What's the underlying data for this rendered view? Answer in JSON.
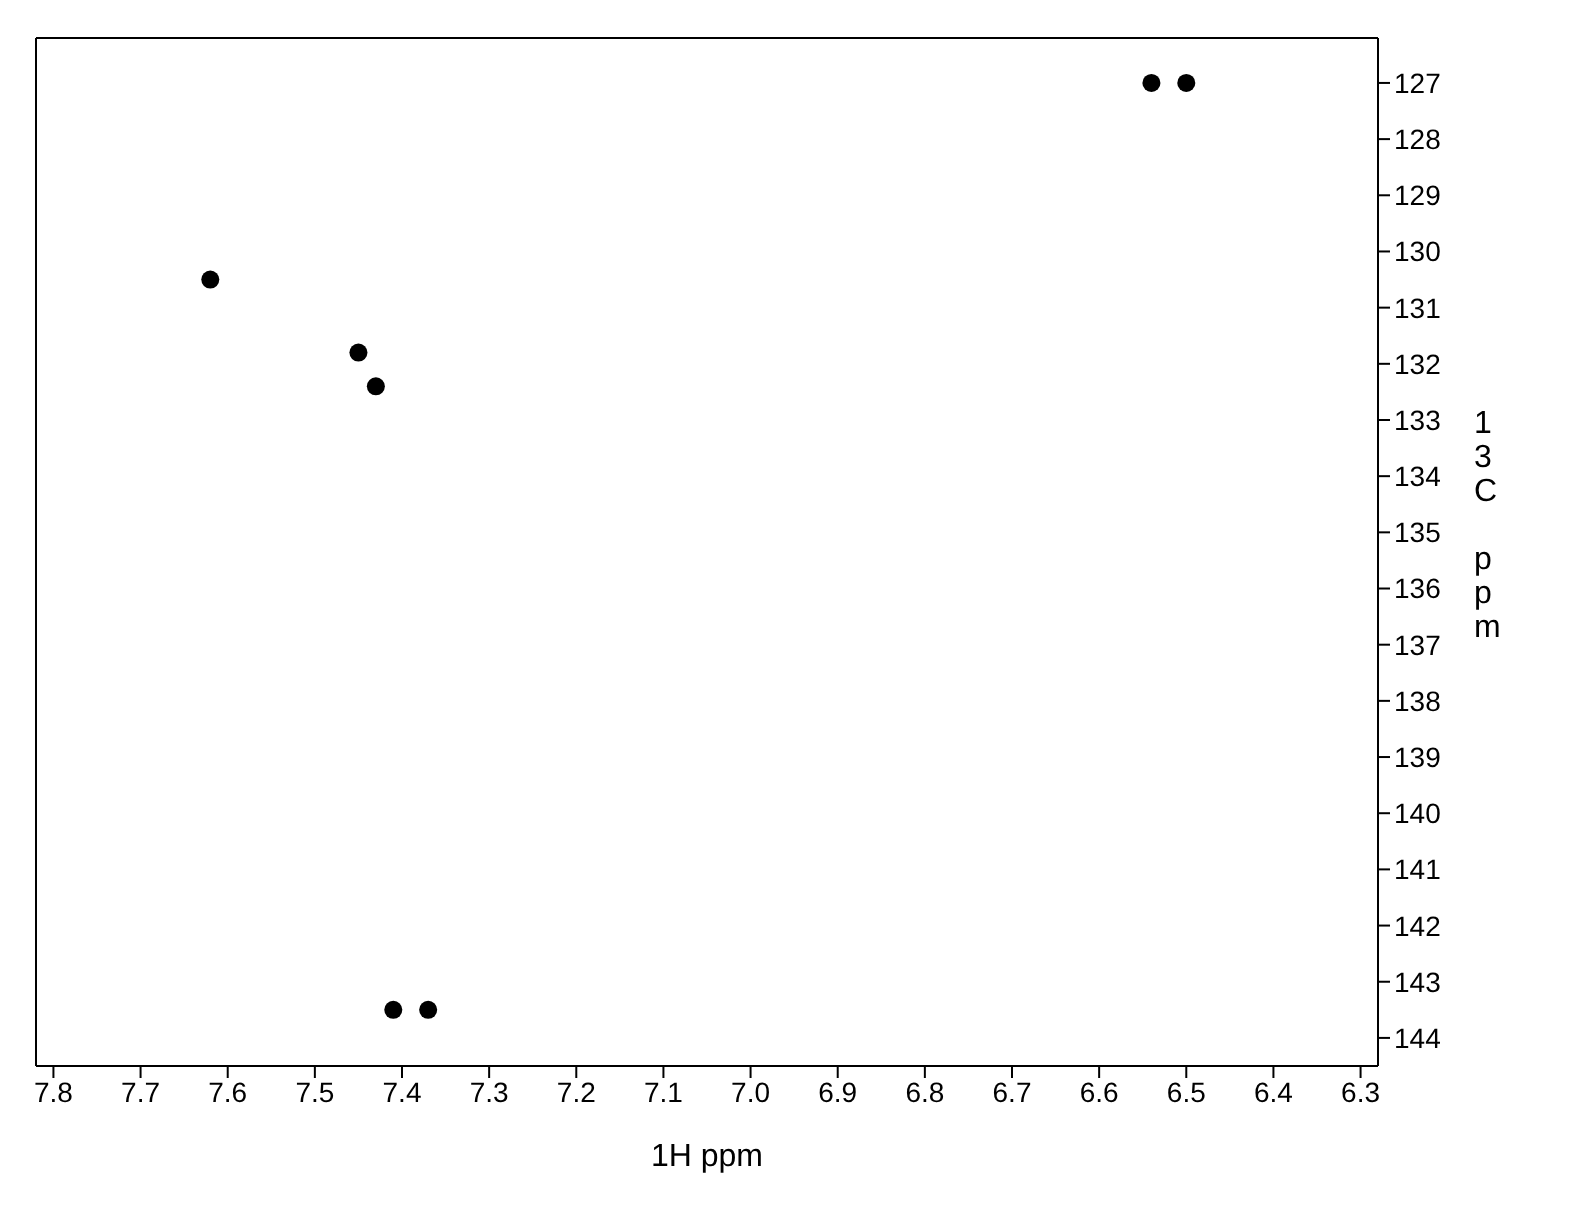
{
  "chart_data": {
    "type": "scatter",
    "xlabel": "1H ppm",
    "ylabel": "13C ppm",
    "x": [
      6.54,
      6.5,
      7.62,
      7.45,
      7.43,
      7.41,
      7.37
    ],
    "values": [
      127.0,
      127.0,
      130.5,
      131.8,
      132.4,
      143.5,
      143.5
    ],
    "color": "#000000",
    "marker": "circle",
    "xlim": [
      7.82,
      6.28
    ],
    "xticks": [
      7.8,
      7.7,
      7.6,
      7.5,
      7.4,
      7.3,
      7.2,
      7.1,
      {
        "value": 7,
        "label": "7.0"
      },
      6.9,
      6.8,
      6.7,
      6.6,
      6.5,
      6.4,
      6.3
    ],
    "ylim": [
      144.5,
      126.2
    ],
    "yticks": [
      127,
      128,
      129,
      130,
      131,
      132,
      133,
      134,
      135,
      136,
      137,
      138,
      139,
      140,
      141,
      142,
      143,
      144
    ]
  }
}
